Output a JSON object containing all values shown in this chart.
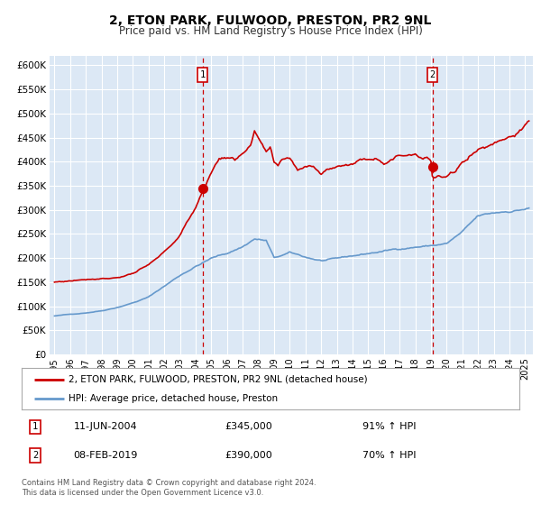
{
  "title": "2, ETON PARK, FULWOOD, PRESTON, PR2 9NL",
  "subtitle": "Price paid vs. HM Land Registry's House Price Index (HPI)",
  "legend_line1": "2, ETON PARK, FULWOOD, PRESTON, PR2 9NL (detached house)",
  "legend_line2": "HPI: Average price, detached house, Preston",
  "annotation1_date": "11-JUN-2004",
  "annotation1_price": "£345,000",
  "annotation1_hpi": "91% ↑ HPI",
  "annotation2_date": "08-FEB-2019",
  "annotation2_price": "£390,000",
  "annotation2_hpi": "70% ↑ HPI",
  "footer1": "Contains HM Land Registry data © Crown copyright and database right 2024.",
  "footer2": "This data is licensed under the Open Government Licence v3.0.",
  "hpi_color": "#6699cc",
  "property_color": "#cc0000",
  "vline_color": "#cc0000",
  "background_plot": "#dce8f5",
  "grid_color": "#ffffff",
  "ylim": [
    0,
    620000
  ],
  "yticks": [
    0,
    50000,
    100000,
    150000,
    200000,
    250000,
    300000,
    350000,
    400000,
    450000,
    500000,
    550000,
    600000
  ],
  "marker1_x": 2004.44,
  "marker1_y": 345000,
  "marker2_x": 2019.1,
  "marker2_y": 390000,
  "xlim_left": 1994.7,
  "xlim_right": 2025.5
}
